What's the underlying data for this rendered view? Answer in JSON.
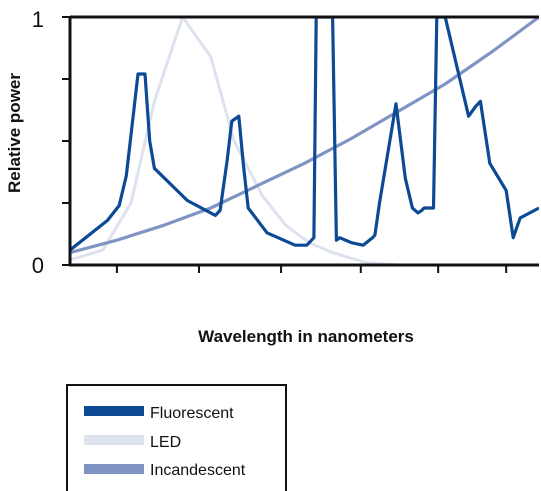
{
  "chart_data": {
    "type": "line",
    "title": "",
    "xlabel": "Wavelength in nanometers",
    "ylabel": "Relative power",
    "xlim": [
      0,
      10
    ],
    "ylim": [
      0,
      1
    ],
    "y_tick_labels": [
      {
        "value": 0,
        "label": "0"
      },
      {
        "value": 1,
        "label": "1"
      }
    ],
    "y_ticks": [
      0,
      0.25,
      0.5,
      0.75,
      1
    ],
    "x_ticks": [
      1,
      2.75,
      4.5,
      6.2,
      7.85,
      9.3
    ],
    "grid": false,
    "legend_position": "bottom-left",
    "series": [
      {
        "name": "Fluorescent",
        "color": "#0d4a96",
        "x": [
          0,
          0.8,
          1.05,
          1.2,
          1.45,
          1.6,
          1.7,
          1.8,
          2.5,
          3.1,
          3.2,
          3.35,
          3.45,
          3.6,
          3.7,
          3.8,
          4.2,
          4.8,
          5.05,
          5.2,
          5.25,
          5.32,
          5.6,
          5.68,
          5.75,
          6.0,
          6.25,
          6.45,
          6.5,
          6.6,
          6.95,
          7.15,
          7.3,
          7.42,
          7.5,
          7.55,
          7.75,
          7.82,
          8.0,
          8.5,
          8.65,
          8.75,
          8.95,
          9.3,
          9.45,
          9.6,
          10
        ],
        "y": [
          0.06,
          0.18,
          0.24,
          0.36,
          0.77,
          0.77,
          0.5,
          0.39,
          0.26,
          0.2,
          0.22,
          0.42,
          0.58,
          0.6,
          0.4,
          0.23,
          0.13,
          0.08,
          0.08,
          0.11,
          1.0,
          1.0,
          1.0,
          0.1,
          0.11,
          0.09,
          0.08,
          0.11,
          0.12,
          0.25,
          0.65,
          0.35,
          0.23,
          0.21,
          0.22,
          0.23,
          0.23,
          1.0,
          1.0,
          0.6,
          0.64,
          0.66,
          0.41,
          0.3,
          0.11,
          0.19,
          0.23
        ]
      },
      {
        "name": "LED",
        "color": "#dde2ee",
        "x": [
          0,
          0.7,
          1.3,
          1.8,
          2.4,
          3.0,
          3.5,
          4.1,
          4.6,
          5.1,
          5.6,
          6.3,
          7.0
        ],
        "y": [
          0.02,
          0.06,
          0.25,
          0.66,
          1.0,
          0.84,
          0.5,
          0.28,
          0.16,
          0.09,
          0.05,
          0.01,
          0.0
        ]
      },
      {
        "name": "Incandescent",
        "color": "#8094c4",
        "x": [
          0,
          1,
          2,
          3,
          4,
          5,
          6,
          7,
          8,
          9,
          10
        ],
        "y": [
          0.05,
          0.1,
          0.16,
          0.23,
          0.32,
          0.41,
          0.51,
          0.62,
          0.73,
          0.86,
          1.0
        ]
      }
    ]
  },
  "legend": {
    "items": [
      {
        "label": "Fluorescent",
        "color": "#0d4a96"
      },
      {
        "label": "LED",
        "color": "#dde2ee"
      },
      {
        "label": "Incandescent",
        "color": "#8094c4"
      }
    ]
  }
}
